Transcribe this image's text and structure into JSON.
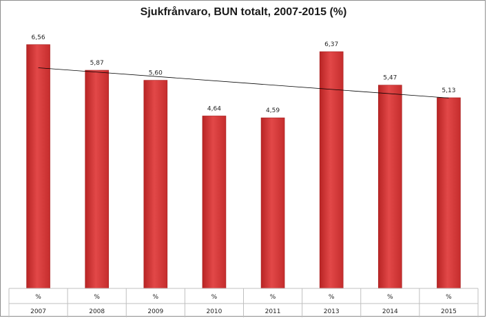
{
  "chart_data": {
    "type": "bar",
    "title": "Sjukfrånvaro, BUN totalt, 2007-2015 (%)",
    "categories": [
      "2007",
      "2008",
      "2009",
      "2010",
      "2011",
      "2013",
      "2014",
      "2015"
    ],
    "category_units": [
      "%",
      "%",
      "%",
      "%",
      "%",
      "%",
      "%",
      "%"
    ],
    "values": [
      6.56,
      5.87,
      5.6,
      4.64,
      4.59,
      6.37,
      5.47,
      5.13
    ],
    "data_labels": [
      "6,56",
      "5,87",
      "5,60",
      "4,64",
      "4,59",
      "6,37",
      "5,47",
      "5,13"
    ],
    "trendline": {
      "type": "linear"
    },
    "xlabel": "",
    "ylabel": "",
    "ylim": [
      0,
      7
    ],
    "grid": false,
    "legend": "none",
    "bar_color": "#d63a3a",
    "trendline_color": "#000000"
  }
}
